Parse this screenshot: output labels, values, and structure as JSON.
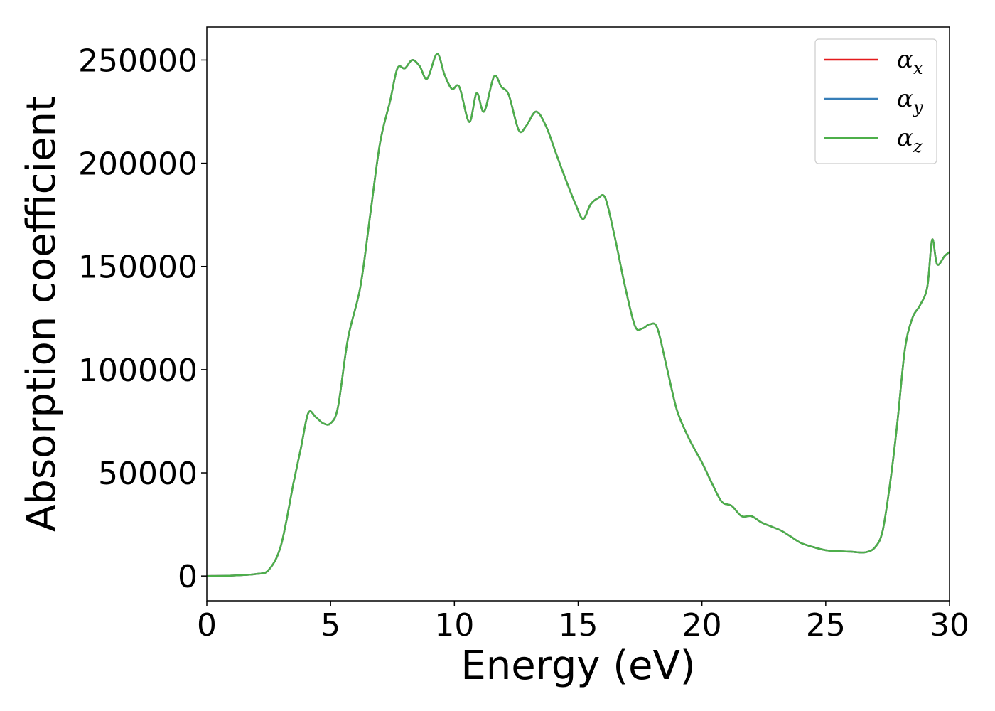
{
  "chart_data": {
    "type": "line",
    "title": "",
    "xlabel": "Energy (eV)",
    "ylabel": "Absorption coefficient",
    "xlim": [
      0,
      30
    ],
    "ylim": [
      -12000,
      266000
    ],
    "xticks": [
      0,
      5,
      10,
      15,
      20,
      25,
      30
    ],
    "yticks": [
      0,
      50000,
      100000,
      150000,
      200000,
      250000
    ],
    "grid": false,
    "legend_position": "top-right",
    "legend": [
      {
        "symbol": "α",
        "subscript": "x",
        "color": "#e41a1c"
      },
      {
        "symbol": "α",
        "subscript": "y",
        "color": "#377eb8"
      },
      {
        "symbol": "α",
        "subscript": "z",
        "color": "#4daf4a"
      }
    ],
    "x": [
      0,
      1,
      2,
      2.5,
      3,
      3.5,
      3.8,
      4.1,
      4.4,
      4.7,
      5,
      5.3,
      5.7,
      6.2,
      6.6,
      7,
      7.4,
      7.7,
      8,
      8.3,
      8.6,
      8.9,
      9.3,
      9.6,
      9.9,
      10.2,
      10.6,
      10.9,
      11.2,
      11.6,
      11.9,
      12.2,
      12.6,
      12.9,
      13.3,
      13.7,
      14.1,
      14.5,
      14.9,
      15.2,
      15.5,
      15.8,
      16.1,
      16.5,
      16.9,
      17.3,
      17.6,
      17.9,
      18.2,
      18.6,
      19,
      19.5,
      20,
      20.4,
      20.8,
      21.2,
      21.6,
      22,
      22.4,
      22.8,
      23.2,
      23.6,
      24,
      24.5,
      25,
      25.5,
      26,
      26.6,
      27,
      27.3,
      27.6,
      27.9,
      28.2,
      28.5,
      28.8,
      29.1,
      29.3,
      29.5,
      29.8,
      30
    ],
    "series": [
      {
        "values": [
          0,
          200,
          1000,
          3000,
          15000,
          45000,
          62000,
          79000,
          77000,
          74000,
          74000,
          82000,
          115000,
          140000,
          175000,
          210000,
          230000,
          246000,
          246000,
          250000,
          247000,
          241000,
          253000,
          243000,
          236000,
          237000,
          220000,
          234000,
          225000,
          242000,
          237000,
          233000,
          216000,
          218000,
          225000,
          218000,
          205000,
          192000,
          180000,
          173000,
          180000,
          183000,
          183000,
          163000,
          140000,
          121000,
          120000,
          122000,
          120000,
          100000,
          80000,
          66000,
          55000,
          45000,
          36000,
          34000,
          29000,
          29000,
          26000,
          24000,
          22000,
          19000,
          16000,
          14000,
          12500,
          12000,
          11800,
          11500,
          14000,
          22000,
          45000,
          75000,
          110000,
          125000,
          131000,
          140000,
          163000,
          151000,
          155000,
          157000
        ]
      },
      {
        "values": [
          0,
          200,
          1000,
          3000,
          15000,
          45000,
          62000,
          79000,
          77000,
          74000,
          74000,
          82000,
          115000,
          140000,
          175000,
          210000,
          230000,
          246000,
          246000,
          250000,
          247000,
          241000,
          253000,
          243000,
          236000,
          237000,
          220000,
          234000,
          225000,
          242000,
          237000,
          233000,
          216000,
          218000,
          225000,
          218000,
          205000,
          192000,
          180000,
          173000,
          180000,
          183000,
          183000,
          163000,
          140000,
          121000,
          120000,
          122000,
          120000,
          100000,
          80000,
          66000,
          55000,
          45000,
          36000,
          34000,
          29000,
          29000,
          26000,
          24000,
          22000,
          19000,
          16000,
          14000,
          12500,
          12000,
          11800,
          11500,
          14000,
          22000,
          45000,
          75000,
          110000,
          125000,
          131000,
          140000,
          163000,
          151000,
          155000,
          157000
        ]
      },
      {
        "values": [
          0,
          200,
          1000,
          3000,
          15000,
          45000,
          62000,
          79000,
          77000,
          74000,
          74000,
          82000,
          115000,
          140000,
          175000,
          210000,
          230000,
          246000,
          246000,
          250000,
          247000,
          241000,
          253000,
          243000,
          236000,
          237000,
          220000,
          234000,
          225000,
          242000,
          237000,
          233000,
          216000,
          218000,
          225000,
          218000,
          205000,
          192000,
          180000,
          173000,
          180000,
          183000,
          183000,
          163000,
          140000,
          121000,
          120000,
          122000,
          120000,
          100000,
          80000,
          66000,
          55000,
          45000,
          36000,
          34000,
          29000,
          29000,
          26000,
          24000,
          22000,
          19000,
          16000,
          14000,
          12500,
          12000,
          11800,
          11500,
          14000,
          22000,
          45000,
          75000,
          110000,
          125000,
          131000,
          140000,
          163000,
          151000,
          155000,
          157000
        ]
      }
    ]
  }
}
